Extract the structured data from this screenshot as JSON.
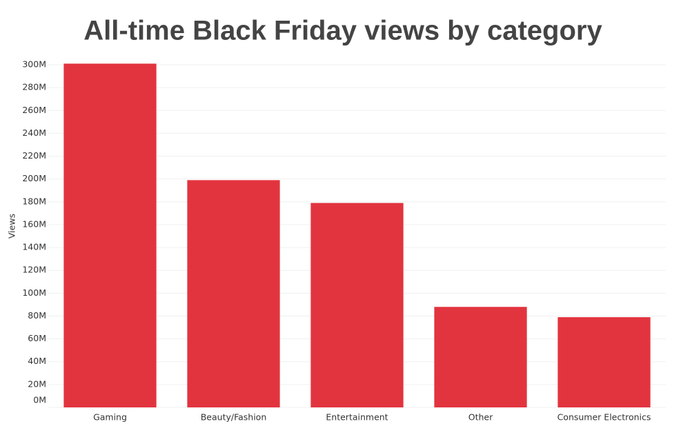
{
  "chart_data": {
    "type": "bar",
    "title": "All-time Black Friday views by category",
    "y_label": "Views",
    "categories": [
      "Gaming",
      "Beauty/Fashion",
      "Entertainment",
      "Other",
      "Consumer Electronics"
    ],
    "values": [
      301000000,
      199000000,
      179000000,
      88000000,
      79000000
    ],
    "color": "#e2343f",
    "ylim": [
      0,
      300000000
    ],
    "yticks": [
      {
        "value": 0,
        "label": "0M"
      },
      {
        "value": 20000000,
        "label": "20M"
      },
      {
        "value": 40000000,
        "label": "40M"
      },
      {
        "value": 60000000,
        "label": "60M"
      },
      {
        "value": 80000000,
        "label": "80M"
      },
      {
        "value": 100000000,
        "label": "100M"
      },
      {
        "value": 120000000,
        "label": "120M"
      },
      {
        "value": 140000000,
        "label": "140M"
      },
      {
        "value": 160000000,
        "label": "160M"
      },
      {
        "value": 180000000,
        "label": "180M"
      },
      {
        "value": 200000000,
        "label": "200M"
      },
      {
        "value": 220000000,
        "label": "220M"
      },
      {
        "value": 240000000,
        "label": "240M"
      },
      {
        "value": 260000000,
        "label": "260M"
      },
      {
        "value": 280000000,
        "label": "280M"
      },
      {
        "value": 300000000,
        "label": "300M"
      }
    ],
    "grid": true
  }
}
